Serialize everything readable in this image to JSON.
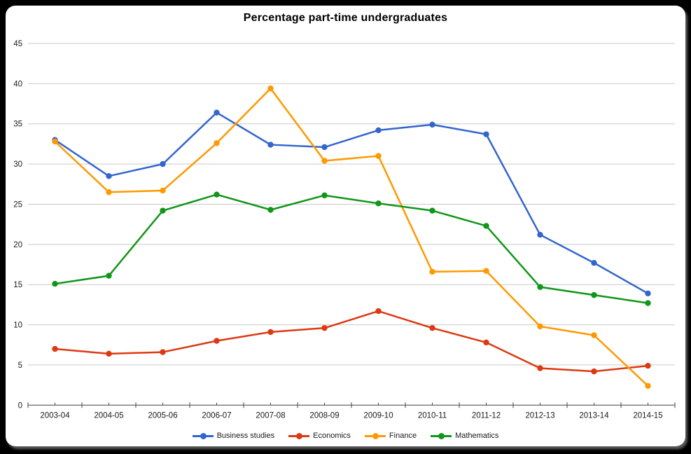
{
  "frame": {
    "background": "#000000",
    "panel_color": "#ffffff"
  },
  "colors": {
    "gridline": "#c9c9c9",
    "axis": "#444444",
    "tick_label": "#1a1a1a",
    "title": "#000000"
  },
  "chart_data": {
    "type": "line",
    "title": "Percentage part-time undergraduates",
    "xlabel": "",
    "ylabel": "",
    "grid": true,
    "legend_position": "bottom",
    "ylim": [
      0,
      45
    ],
    "y_tick_step": 5,
    "y_tick_labels": [
      "45",
      "40",
      "35",
      "30",
      "25",
      "20",
      "15",
      "10",
      "5",
      "0"
    ],
    "categories": [
      "2003-04",
      "2004-05",
      "2005-06",
      "2006-07",
      "2007-08",
      "2008-09",
      "2009-10",
      "2010-11",
      "2011-12",
      "2012-13",
      "2013-14",
      "2014-15"
    ],
    "series": [
      {
        "name": "Business studies",
        "color": "#3366CC",
        "values": [
          33.0,
          28.5,
          30.0,
          36.4,
          32.4,
          32.1,
          34.2,
          34.9,
          33.7,
          21.2,
          17.7,
          13.9
        ]
      },
      {
        "name": "Economics",
        "color": "#DC3912",
        "values": [
          7.0,
          6.4,
          6.6,
          8.0,
          9.1,
          9.6,
          11.7,
          9.6,
          7.8,
          4.6,
          4.2,
          4.9
        ]
      },
      {
        "name": "Finance",
        "color": "#FF9900",
        "values": [
          32.8,
          26.5,
          26.7,
          32.6,
          39.4,
          30.4,
          31.0,
          16.6,
          16.7,
          9.8,
          8.7,
          2.4
        ]
      },
      {
        "name": "Mathematics",
        "color": "#109618",
        "values": [
          15.1,
          16.1,
          24.2,
          26.2,
          24.3,
          26.1,
          25.1,
          24.2,
          22.3,
          14.7,
          13.7,
          12.7
        ]
      }
    ]
  }
}
